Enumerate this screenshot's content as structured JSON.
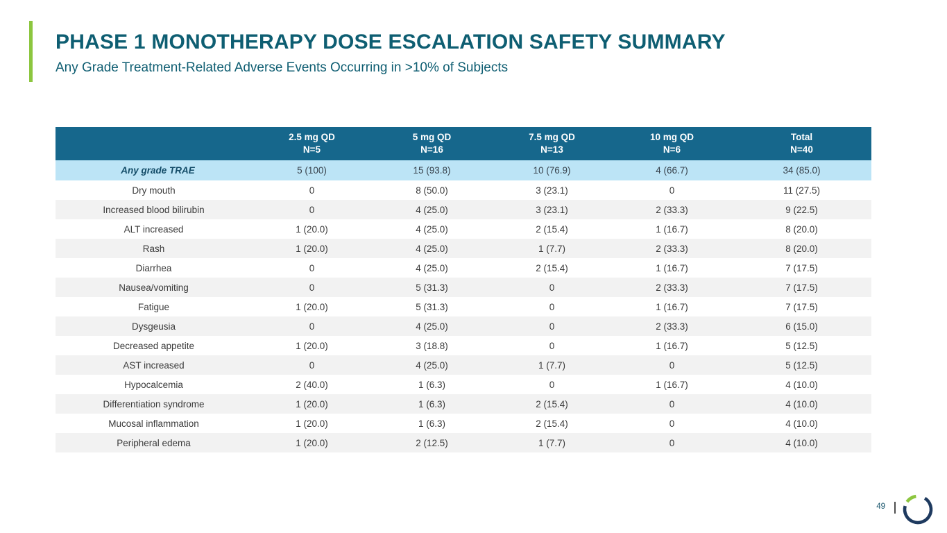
{
  "slide": {
    "title": "PHASE 1 MONOTHERAPY DOSE ESCALATION SAFETY SUMMARY",
    "subtitle": "Any Grade Treatment-Related Adverse Events Occurring in >10% of Subjects"
  },
  "table": {
    "columns": [
      {
        "label": "",
        "n": ""
      },
      {
        "label": "2.5 mg QD",
        "n": "N=5"
      },
      {
        "label": "5 mg QD",
        "n": "N=16"
      },
      {
        "label": "7.5 mg QD",
        "n": "N=13"
      },
      {
        "label": "10 mg QD",
        "n": "N=6"
      },
      {
        "label": "Total",
        "n": "N=40"
      }
    ],
    "summary_row": {
      "label": "Any grade TRAE",
      "values": [
        "5 (100)",
        "15 (93.8)",
        "10 (76.9)",
        "4 (66.7)",
        "34 (85.0)"
      ]
    },
    "rows": [
      {
        "label": "Dry mouth",
        "values": [
          "0",
          "8 (50.0)",
          "3 (23.1)",
          "0",
          "11 (27.5)"
        ]
      },
      {
        "label": "Increased blood bilirubin",
        "values": [
          "0",
          "4 (25.0)",
          "3 (23.1)",
          "2 (33.3)",
          "9 (22.5)"
        ]
      },
      {
        "label": "ALT increased",
        "values": [
          "1 (20.0)",
          "4 (25.0)",
          "2 (15.4)",
          "1 (16.7)",
          "8 (20.0)"
        ]
      },
      {
        "label": "Rash",
        "values": [
          "1 (20.0)",
          "4 (25.0)",
          "1 (7.7)",
          "2 (33.3)",
          "8 (20.0)"
        ]
      },
      {
        "label": "Diarrhea",
        "values": [
          "0",
          "4 (25.0)",
          "2 (15.4)",
          "1 (16.7)",
          "7 (17.5)"
        ]
      },
      {
        "label": "Nausea/vomiting",
        "values": [
          "0",
          "5 (31.3)",
          "0",
          "2 (33.3)",
          "7 (17.5)"
        ]
      },
      {
        "label": "Fatigue",
        "values": [
          "1 (20.0)",
          "5 (31.3)",
          "0",
          "1 (16.7)",
          "7 (17.5)"
        ]
      },
      {
        "label": "Dysgeusia",
        "values": [
          "0",
          "4 (25.0)",
          "0",
          "2 (33.3)",
          "6 (15.0)"
        ]
      },
      {
        "label": "Decreased appetite",
        "values": [
          "1 (20.0)",
          "3 (18.8)",
          "0",
          "1 (16.7)",
          "5 (12.5)"
        ]
      },
      {
        "label": "AST increased",
        "values": [
          "0",
          "4 (25.0)",
          "1 (7.7)",
          "0",
          "5 (12.5)"
        ]
      },
      {
        "label": "Hypocalcemia",
        "values": [
          "2 (40.0)",
          "1 (6.3)",
          "0",
          "1 (16.7)",
          "4 (10.0)"
        ]
      },
      {
        "label": "Differentiation syndrome",
        "values": [
          "1 (20.0)",
          "1 (6.3)",
          "2 (15.4)",
          "0",
          "4 (10.0)"
        ]
      },
      {
        "label": "Mucosal inflammation",
        "values": [
          "1 (20.0)",
          "1 (6.3)",
          "2 (15.4)",
          "0",
          "4 (10.0)"
        ]
      },
      {
        "label": "Peripheral edema",
        "values": [
          "1 (20.0)",
          "2 (12.5)",
          "1 (7.7)",
          "0",
          "4 (10.0)"
        ]
      }
    ]
  },
  "footer": {
    "page_number": "49"
  },
  "colors": {
    "accent_green": "#8CC63F",
    "title_teal": "#0E5E72",
    "table_header_bg": "#16678C",
    "summary_row_bg": "#BCE4F6",
    "stripe_gray": "#F2F2F2",
    "body_text": "#3A3A3A",
    "logo_navy": "#1E3A5F"
  }
}
